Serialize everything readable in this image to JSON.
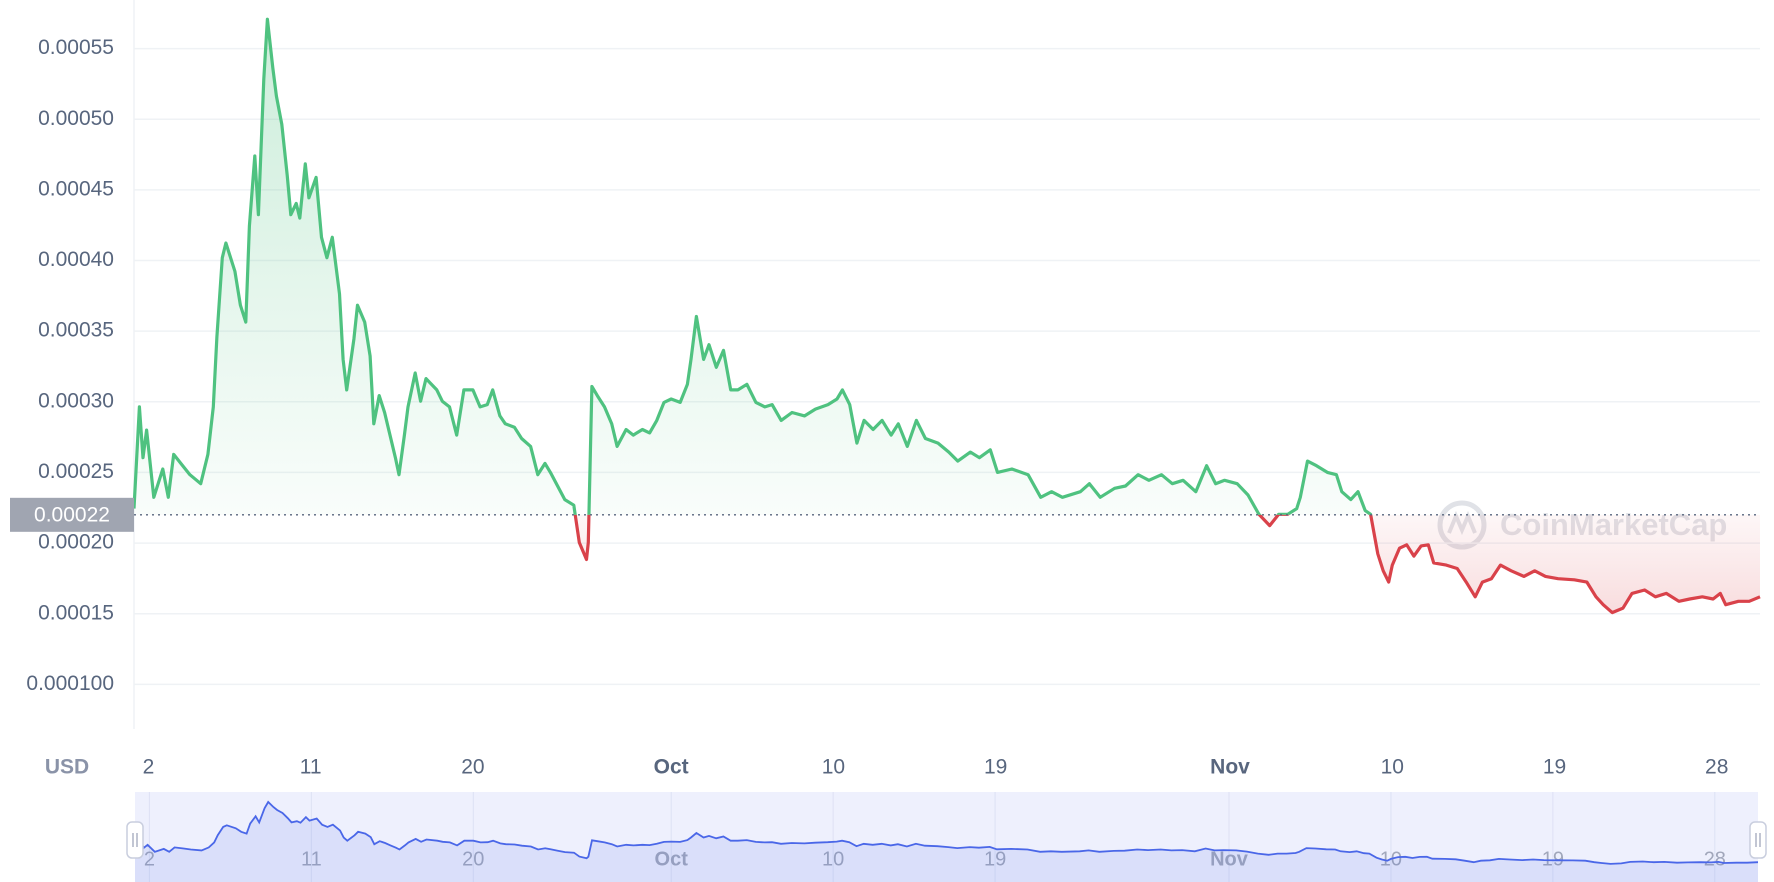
{
  "chart_data": {
    "type": "line",
    "y_axis_label": "USD",
    "watermark": "CoinMarketCap",
    "baseline": 0.00022,
    "grid": true,
    "xlim": [
      1.2,
      91.4
    ],
    "ylim": [
      6.84e-05,
      0.0005844
    ],
    "xticks": [
      2,
      11,
      20,
      {
        "value": 31,
        "label": "Oct"
      },
      {
        "value": 40,
        "label": "10"
      },
      {
        "value": 49,
        "label": "19"
      },
      {
        "value": 62,
        "label": "Nov"
      },
      {
        "value": 71,
        "label": "10"
      },
      {
        "value": 80,
        "label": "19"
      },
      {
        "value": 89,
        "label": "28"
      }
    ],
    "yticks": [
      {
        "value": 0.0001,
        "label": "0.000100"
      },
      0.00015,
      {
        "value": 0.0002,
        "label": "0.00020"
      },
      0.00025,
      {
        "value": 0.0003,
        "label": "0.00030"
      },
      0.00035,
      {
        "value": 0.0004,
        "label": "0.00040"
      },
      0.00045,
      {
        "value": 0.0005,
        "label": "0.00050"
      },
      0.00055
    ],
    "x": [
      1.2,
      1.5,
      1.7,
      1.9,
      2.3,
      2.8,
      3.1,
      3.4,
      3.9,
      4.3,
      4.9,
      5.3,
      5.6,
      5.8,
      6.1,
      6.3,
      6.8,
      7.1,
      7.4,
      7.6,
      7.9,
      8.1,
      8.4,
      8.6,
      8.9,
      9.1,
      9.4,
      9.7,
      9.9,
      10.2,
      10.4,
      10.7,
      10.9,
      11.3,
      11.6,
      11.9,
      12.2,
      12.6,
      12.8,
      13.0,
      13.4,
      13.6,
      14.0,
      14.3,
      14.5,
      14.8,
      15.1,
      15.4,
      15.7,
      15.9,
      16.2,
      16.4,
      16.8,
      17.1,
      17.4,
      18.0,
      18.3,
      18.7,
      19.1,
      19.5,
      20.0,
      20.4,
      20.8,
      21.1,
      21.5,
      21.8,
      22.3,
      22.7,
      23.2,
      23.6,
      24.0,
      24.3,
      24.7,
      25.1,
      25.6,
      25.9,
      26.3,
      26.4,
      26.6,
      26.9,
      27.3,
      27.7,
      28.0,
      28.5,
      28.9,
      29.4,
      29.8,
      30.2,
      30.6,
      31.0,
      31.5,
      31.9,
      32.1,
      32.4,
      32.8,
      33.1,
      33.5,
      33.9,
      34.3,
      34.7,
      35.2,
      35.7,
      36.2,
      36.6,
      37.1,
      37.7,
      38.4,
      39.0,
      39.7,
      40.2,
      40.5,
      40.9,
      41.3,
      41.7,
      42.2,
      42.7,
      43.2,
      43.6,
      44.1,
      44.6,
      45.1,
      45.8,
      46.4,
      46.9,
      47.6,
      48.1,
      48.7,
      49.1,
      49.9,
      50.8,
      51.5,
      52.1,
      52.7,
      53.7,
      54.2,
      54.8,
      55.6,
      56.2,
      56.9,
      57.5,
      58.2,
      58.8,
      59.4,
      60.1,
      60.7,
      61.2,
      61.7,
      62.4,
      63.0,
      63.6,
      64.2,
      64.7,
      65.2,
      65.7,
      65.9,
      66.3,
      66.8,
      67.4,
      67.9,
      68.2,
      68.7,
      69.1,
      69.5,
      69.8,
      70.2,
      70.5,
      70.8,
      71.0,
      71.4,
      71.8,
      72.2,
      72.6,
      73.0,
      73.3,
      74.0,
      74.6,
      75.1,
      75.6,
      76.0,
      76.5,
      77.0,
      77.6,
      78.3,
      78.9,
      79.5,
      80.2,
      81.1,
      81.8,
      82.3,
      82.7,
      83.2,
      83.8,
      84.3,
      85.0,
      85.6,
      86.2,
      86.9,
      87.5,
      88.2,
      88.8,
      89.2,
      89.5,
      90.2,
      90.8,
      91.4
    ],
    "series": [
      {
        "color": "#4fc280",
        "color_below": "#d9424a",
        "navigator_color": "#4a67e8",
        "values": [
          0.0002244,
          0.0002964,
          0.0002604,
          0.00028,
          0.0002324,
          0.0002524,
          0.0002324,
          0.0002628,
          0.0002548,
          0.0002484,
          0.000242,
          0.0002628,
          0.0002964,
          0.000346,
          0.000402,
          0.0004124,
          0.0003924,
          0.0003684,
          0.0003564,
          0.0004244,
          0.000474,
          0.0004324,
          0.0005284,
          0.0005708,
          0.0005364,
          0.0005164,
          0.0004964,
          0.0004604,
          0.0004324,
          0.0004404,
          0.00043,
          0.0004684,
          0.0004444,
          0.0004588,
          0.0004164,
          0.000402,
          0.0004164,
          0.0003764,
          0.00033,
          0.0003084,
          0.0003444,
          0.0003684,
          0.0003564,
          0.0003324,
          0.0002844,
          0.0003044,
          0.0002924,
          0.0002764,
          0.0002604,
          0.0002484,
          0.0002764,
          0.0002964,
          0.0003204,
          0.0003004,
          0.0003164,
          0.0003084,
          0.0003004,
          0.0002964,
          0.0002764,
          0.0003084,
          0.0003084,
          0.0002964,
          0.000298,
          0.0003084,
          0.00029,
          0.0002844,
          0.000282,
          0.000274,
          0.0002684,
          0.0002484,
          0.0002564,
          0.00025,
          0.0002404,
          0.0002308,
          0.0002268,
          0.0002004,
          0.0001884,
          0.0002004,
          0.0003108,
          0.0003044,
          0.0002964,
          0.0002844,
          0.0002684,
          0.0002804,
          0.0002764,
          0.0002804,
          0.000278,
          0.0002868,
          0.0002996,
          0.000302,
          0.0002996,
          0.0003124,
          0.00033,
          0.0003604,
          0.00033,
          0.0003404,
          0.0003244,
          0.0003364,
          0.0003084,
          0.0003084,
          0.0003124,
          0.0002996,
          0.0002964,
          0.000298,
          0.0002868,
          0.0002924,
          0.00029,
          0.0002948,
          0.000298,
          0.000302,
          0.0003084,
          0.000298,
          0.0002708,
          0.0002868,
          0.0002804,
          0.0002868,
          0.0002764,
          0.0002844,
          0.0002684,
          0.0002868,
          0.000274,
          0.0002708,
          0.0002644,
          0.000258,
          0.0002644,
          0.0002604,
          0.000266,
          0.00025,
          0.0002524,
          0.0002484,
          0.0002324,
          0.0002364,
          0.0002324,
          0.0002364,
          0.000242,
          0.0002324,
          0.0002388,
          0.0002404,
          0.0002484,
          0.0002444,
          0.0002484,
          0.000242,
          0.0002444,
          0.0002364,
          0.0002548,
          0.000242,
          0.0002444,
          0.000242,
          0.000234,
          0.0002204,
          0.0002124,
          0.0002204,
          0.0002204,
          0.0002244,
          0.0002324,
          0.000258,
          0.0002548,
          0.00025,
          0.0002484,
          0.0002364,
          0.0002308,
          0.0002364,
          0.000223,
          0.0002204,
          0.0001924,
          0.0001804,
          0.0001724,
          0.0001844,
          0.0001964,
          0.0001988,
          0.0001908,
          0.000198,
          0.0001988,
          0.000186,
          0.0001844,
          0.000182,
          0.0001724,
          0.000162,
          0.0001724,
          0.0001748,
          0.0001844,
          0.0001804,
          0.0001764,
          0.0001804,
          0.0001764,
          0.0001748,
          0.000174,
          0.0001724,
          0.000162,
          0.0001564,
          0.0001508,
          0.000154,
          0.0001644,
          0.0001668,
          0.000162,
          0.0001644,
          0.0001588,
          0.0001604,
          0.000162,
          0.0001604,
          0.0001644,
          0.0001564,
          0.0001588,
          0.0001588,
          0.000162
        ]
      }
    ]
  }
}
